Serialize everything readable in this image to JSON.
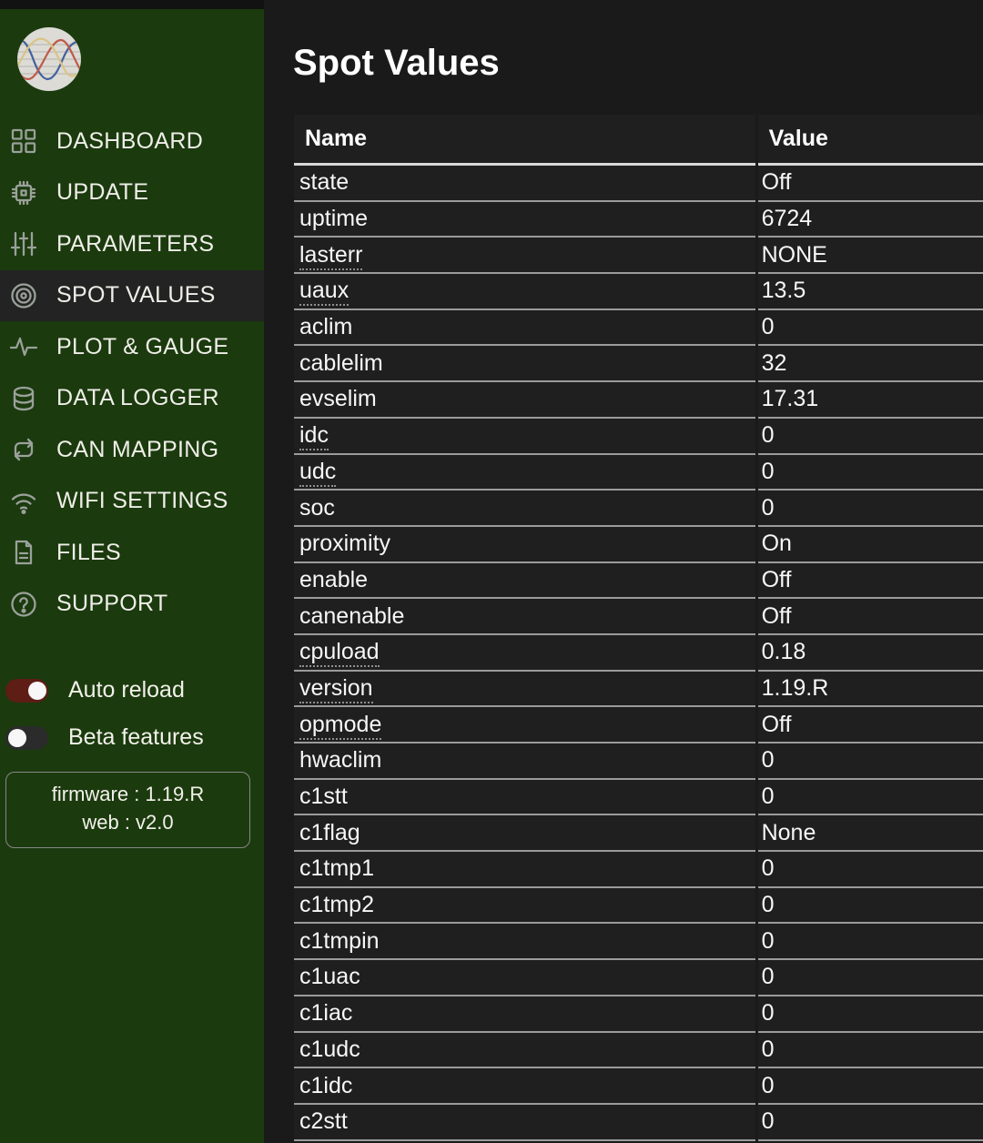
{
  "sidebar": {
    "logo": "sine-waves-logo",
    "nav": [
      {
        "label": "DASHBOARD",
        "icon": "dashboard-icon",
        "active": false
      },
      {
        "label": "UPDATE",
        "icon": "chip-icon",
        "active": false
      },
      {
        "label": "PARAMETERS",
        "icon": "sliders-icon",
        "active": false
      },
      {
        "label": "SPOT VALUES",
        "icon": "target-icon",
        "active": true
      },
      {
        "label": "PLOT & GAUGE",
        "icon": "pulse-icon",
        "active": false
      },
      {
        "label": "DATA LOGGER",
        "icon": "database-icon",
        "active": false
      },
      {
        "label": "CAN MAPPING",
        "icon": "repeat-icon",
        "active": false
      },
      {
        "label": "WIFI SETTINGS",
        "icon": "wifi-icon",
        "active": false
      },
      {
        "label": "FILES",
        "icon": "file-icon",
        "active": false
      },
      {
        "label": "SUPPORT",
        "icon": "question-icon",
        "active": false
      }
    ],
    "toggles": [
      {
        "label": "Auto reload",
        "on": true
      },
      {
        "label": "Beta features",
        "on": false
      }
    ],
    "firmware_line1": "firmware : 1.19.R",
    "firmware_line2": "web : v2.0"
  },
  "main": {
    "title": "Spot Values",
    "table": {
      "columns": [
        "Name",
        "Value"
      ],
      "rows": [
        {
          "name": "state",
          "value": "Off",
          "dotted": false
        },
        {
          "name": "uptime",
          "value": "6724",
          "dotted": false
        },
        {
          "name": "lasterr",
          "value": "NONE",
          "dotted": true
        },
        {
          "name": "uaux",
          "value": "13.5",
          "dotted": true
        },
        {
          "name": "aclim",
          "value": "0",
          "dotted": false
        },
        {
          "name": "cablelim",
          "value": "32",
          "dotted": false
        },
        {
          "name": "evselim",
          "value": "17.31",
          "dotted": false
        },
        {
          "name": "idc",
          "value": "0",
          "dotted": true
        },
        {
          "name": "udc",
          "value": "0",
          "dotted": true
        },
        {
          "name": "soc",
          "value": "0",
          "dotted": false
        },
        {
          "name": "proximity",
          "value": "On",
          "dotted": false
        },
        {
          "name": "enable",
          "value": "Off",
          "dotted": false
        },
        {
          "name": "canenable",
          "value": "Off",
          "dotted": false
        },
        {
          "name": "cpuload",
          "value": "0.18",
          "dotted": true
        },
        {
          "name": "version",
          "value": "1.19.R",
          "dotted": true
        },
        {
          "name": "opmode",
          "value": "Off",
          "dotted": true
        },
        {
          "name": "hwaclim",
          "value": "0",
          "dotted": false
        },
        {
          "name": "c1stt",
          "value": "0",
          "dotted": false
        },
        {
          "name": "c1flag",
          "value": "None",
          "dotted": false
        },
        {
          "name": "c1tmp1",
          "value": "0",
          "dotted": false
        },
        {
          "name": "c1tmp2",
          "value": "0",
          "dotted": false
        },
        {
          "name": "c1tmpin",
          "value": "0",
          "dotted": false
        },
        {
          "name": "c1uac",
          "value": "0",
          "dotted": false
        },
        {
          "name": "c1iac",
          "value": "0",
          "dotted": false
        },
        {
          "name": "c1udc",
          "value": "0",
          "dotted": false
        },
        {
          "name": "c1idc",
          "value": "0",
          "dotted": false
        },
        {
          "name": "c2stt",
          "value": "0",
          "dotted": false
        }
      ]
    }
  },
  "colors": {
    "sidebar_green": "#1b3a0e",
    "active_item_bg": "#232323",
    "main_bg": "#1a1a1a",
    "row_bg": "#1f1f1f",
    "toggle_on_red": "#5e1d15",
    "toggle_off_gray": "#2b2b2b",
    "separator_gray": "#9b9b9b",
    "icon_gray": "#9aa19a"
  }
}
